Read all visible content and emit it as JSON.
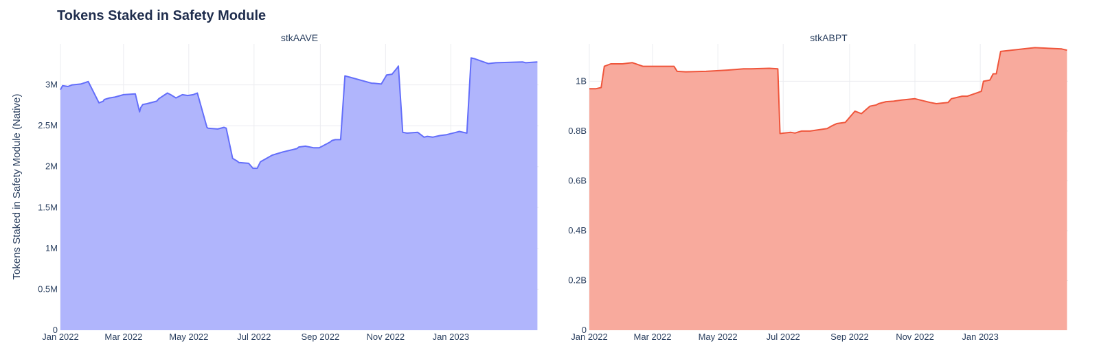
{
  "title": "Tokens Staked in Safety Module",
  "y_axis_label": "Tokens Staked in Safety Module (Native)",
  "chart_data": [
    {
      "type": "area",
      "subtitle": "stkAAVE",
      "color": "#636efa",
      "fill": "#b0b5fc",
      "xlim": [
        "2022-01-01",
        "2023-03-24"
      ],
      "ylim": [
        0,
        3500000
      ],
      "x_ticks": [
        {
          "date": "2022-01-01",
          "label": "Jan 2022"
        },
        {
          "date": "2022-03-01",
          "label": "Mar 2022"
        },
        {
          "date": "2022-05-01",
          "label": "May 2022"
        },
        {
          "date": "2022-07-01",
          "label": "Jul 2022"
        },
        {
          "date": "2022-09-01",
          "label": "Sep 2022"
        },
        {
          "date": "2022-11-01",
          "label": "Nov 2022"
        },
        {
          "date": "2023-01-01",
          "label": "Jan 2023"
        }
      ],
      "y_ticks": [
        {
          "value": 0,
          "label": "0"
        },
        {
          "value": 500000,
          "label": "0.5M"
        },
        {
          "value": 1000000,
          "label": "1M"
        },
        {
          "value": 1500000,
          "label": "1.5M"
        },
        {
          "value": 2000000,
          "label": "2M"
        },
        {
          "value": 2500000,
          "label": "2.5M"
        },
        {
          "value": 3000000,
          "label": "3M"
        }
      ],
      "x": [
        "2022-01-01",
        "2022-01-03",
        "2022-01-08",
        "2022-01-12",
        "2022-01-20",
        "2022-01-27",
        "2022-02-06",
        "2022-02-10",
        "2022-02-11",
        "2022-02-16",
        "2022-02-21",
        "2022-03-01",
        "2022-03-12",
        "2022-03-16",
        "2022-03-17",
        "2022-03-19",
        "2022-03-23",
        "2022-04-01",
        "2022-04-03",
        "2022-04-11",
        "2022-04-14",
        "2022-04-19",
        "2022-04-25",
        "2022-04-30",
        "2022-05-05",
        "2022-05-09",
        "2022-05-18",
        "2022-05-19",
        "2022-05-28",
        "2022-06-03",
        "2022-06-05",
        "2022-06-11",
        "2022-06-15",
        "2022-06-17",
        "2022-06-26",
        "2022-06-30",
        "2022-07-04",
        "2022-07-07",
        "2022-07-18",
        "2022-07-28",
        "2022-08-10",
        "2022-08-12",
        "2022-08-18",
        "2022-08-26",
        "2022-08-31",
        "2022-09-10",
        "2022-09-12",
        "2022-09-15",
        "2022-09-20",
        "2022-09-24",
        "2022-10-19",
        "2022-10-21",
        "2022-10-28",
        "2022-11-02",
        "2022-11-07",
        "2022-11-12",
        "2022-11-13",
        "2022-11-17",
        "2022-11-21",
        "2022-12-01",
        "2022-12-07",
        "2022-12-10",
        "2022-12-15",
        "2022-12-22",
        "2022-12-28",
        "2023-01-06",
        "2023-01-09",
        "2023-01-16",
        "2023-01-20",
        "2023-01-23",
        "2023-02-05",
        "2023-02-12",
        "2023-03-09",
        "2023-03-12",
        "2023-03-23"
      ],
      "y": [
        2940000,
        2990000,
        2980000,
        3000000,
        3010000,
        3040000,
        2780000,
        2800000,
        2820000,
        2840000,
        2850000,
        2880000,
        2890000,
        2670000,
        2720000,
        2760000,
        2770000,
        2800000,
        2830000,
        2900000,
        2880000,
        2840000,
        2880000,
        2870000,
        2880000,
        2900000,
        2480000,
        2470000,
        2460000,
        2480000,
        2470000,
        2100000,
        2070000,
        2050000,
        2040000,
        1980000,
        1980000,
        2060000,
        2140000,
        2180000,
        2220000,
        2240000,
        2250000,
        2230000,
        2230000,
        2300000,
        2320000,
        2330000,
        2330000,
        3110000,
        3020000,
        3020000,
        3010000,
        3120000,
        3130000,
        3210000,
        3230000,
        2420000,
        2410000,
        2420000,
        2360000,
        2370000,
        2360000,
        2380000,
        2390000,
        2420000,
        2430000,
        2410000,
        3330000,
        3320000,
        3260000,
        3270000,
        3280000,
        3270000,
        3280000
      ]
    },
    {
      "type": "area",
      "subtitle": "stkABPT",
      "color": "#ef553b",
      "fill": "#f8aa9d",
      "xlim": [
        "2022-01-01",
        "2023-03-24"
      ],
      "ylim": [
        0,
        1150000000
      ],
      "x_ticks": [
        {
          "date": "2022-01-01",
          "label": "Jan 2022"
        },
        {
          "date": "2022-03-01",
          "label": "Mar 2022"
        },
        {
          "date": "2022-05-01",
          "label": "May 2022"
        },
        {
          "date": "2022-07-01",
          "label": "Jul 2022"
        },
        {
          "date": "2022-09-01",
          "label": "Sep 2022"
        },
        {
          "date": "2022-11-01",
          "label": "Nov 2022"
        },
        {
          "date": "2023-01-01",
          "label": "Jan 2023"
        }
      ],
      "y_ticks": [
        {
          "value": 0,
          "label": "0"
        },
        {
          "value": 200000000,
          "label": "0.2B"
        },
        {
          "value": 400000000,
          "label": "0.4B"
        },
        {
          "value": 600000000,
          "label": "0.6B"
        },
        {
          "value": 800000000,
          "label": "0.8B"
        },
        {
          "value": 1000000000,
          "label": "1B"
        }
      ],
      "x": [
        "2022-01-01",
        "2022-01-07",
        "2022-01-12",
        "2022-01-15",
        "2022-01-21",
        "2022-02-01",
        "2022-02-10",
        "2022-02-20",
        "2022-03-04",
        "2022-03-21",
        "2022-03-24",
        "2022-04-01",
        "2022-04-20",
        "2022-05-10",
        "2022-05-25",
        "2022-06-01",
        "2022-06-18",
        "2022-06-26",
        "2022-06-28",
        "2022-07-02",
        "2022-07-08",
        "2022-07-12",
        "2022-07-18",
        "2022-07-26",
        "2022-08-11",
        "2022-08-15",
        "2022-08-20",
        "2022-08-28",
        "2022-09-06",
        "2022-09-12",
        "2022-09-20",
        "2022-09-26",
        "2022-09-28",
        "2022-10-05",
        "2022-10-12",
        "2022-10-20",
        "2022-11-01",
        "2022-11-15",
        "2022-11-21",
        "2022-12-02",
        "2022-12-05",
        "2022-12-10",
        "2022-12-15",
        "2022-12-20",
        "2022-12-30",
        "2023-01-02",
        "2023-01-04",
        "2023-01-10",
        "2023-01-13",
        "2023-01-16",
        "2023-01-20",
        "2023-02-10",
        "2023-02-21",
        "2023-03-18",
        "2023-03-23"
      ],
      "y": [
        970000000,
        970000000,
        975000000,
        1060000000,
        1070000000,
        1070000000,
        1075000000,
        1060000000,
        1060000000,
        1060000000,
        1040000000,
        1038000000,
        1040000000,
        1045000000,
        1050000000,
        1050000000,
        1052000000,
        1050000000,
        790000000,
        792000000,
        795000000,
        792000000,
        800000000,
        800000000,
        810000000,
        820000000,
        830000000,
        835000000,
        880000000,
        870000000,
        900000000,
        905000000,
        910000000,
        918000000,
        920000000,
        925000000,
        930000000,
        915000000,
        910000000,
        915000000,
        930000000,
        935000000,
        940000000,
        940000000,
        955000000,
        960000000,
        1000000000,
        1005000000,
        1030000000,
        1030000000,
        1120000000,
        1130000000,
        1135000000,
        1130000000,
        1125000000
      ]
    }
  ]
}
